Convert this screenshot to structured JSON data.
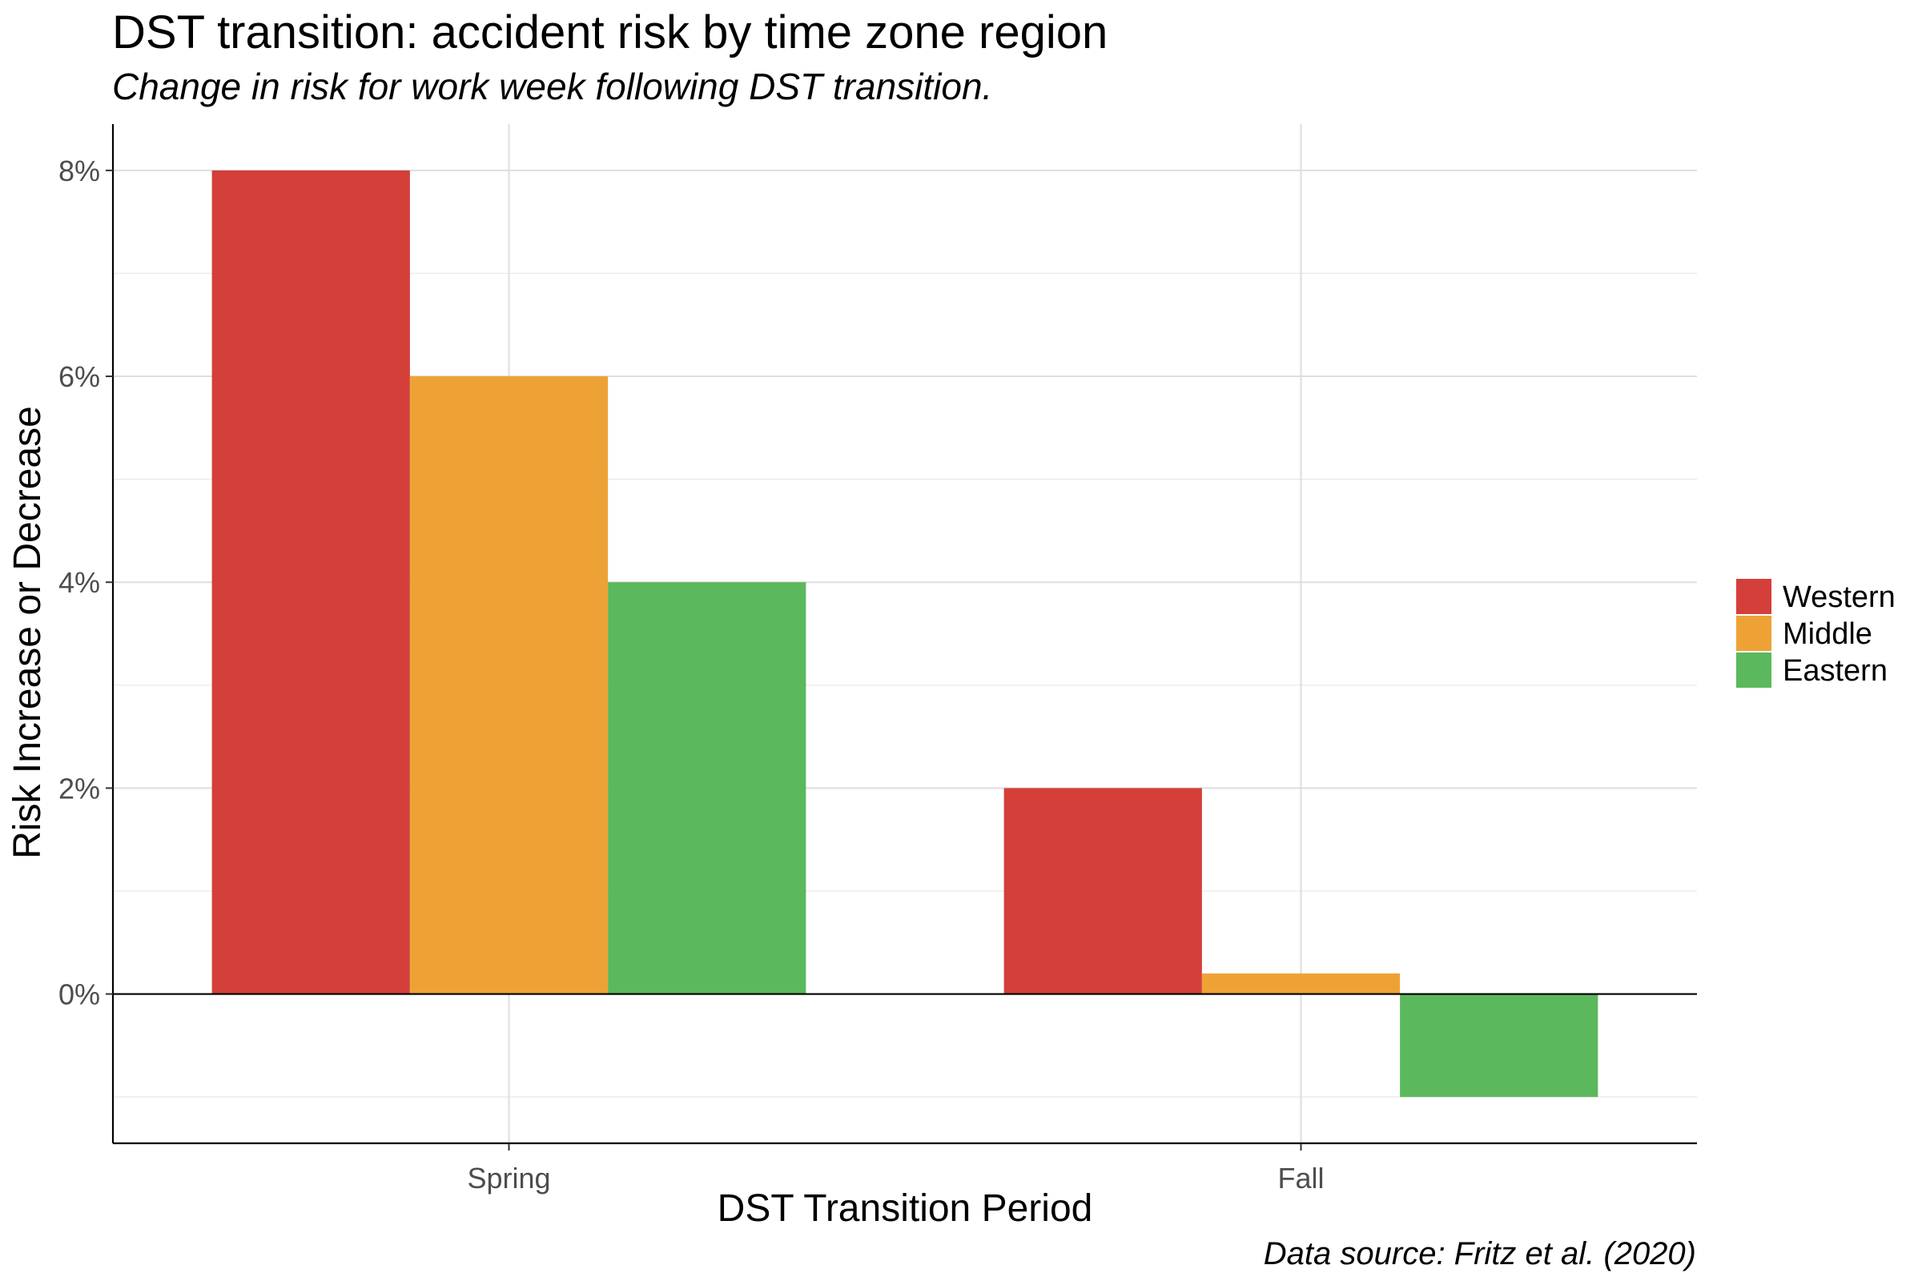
{
  "chart_data": {
    "type": "bar",
    "title": "DST transition: accident risk by time zone region",
    "subtitle": "Change in risk for work week following DST transition.",
    "caption": "Data source: Fritz et al. (2020)",
    "xlabel": "DST Transition Period",
    "ylabel": "Risk Increase or Decrease",
    "categories": [
      "Spring",
      "Fall"
    ],
    "series": [
      {
        "name": "Western",
        "color": "#d43f3a",
        "values": [
          8.0,
          2.0
        ]
      },
      {
        "name": "Middle",
        "color": "#eea236",
        "values": [
          6.0,
          0.2
        ]
      },
      {
        "name": "Eastern",
        "color": "#5cb85c",
        "values": [
          4.0,
          -1.0
        ]
      }
    ],
    "ylim": [
      -1.45,
      8.45
    ],
    "yticks": [
      0,
      2,
      4,
      6,
      8
    ],
    "ytick_labels": [
      "0%",
      "2%",
      "4%",
      "6%",
      "8%"
    ],
    "grid": true,
    "legend_position": "right"
  }
}
